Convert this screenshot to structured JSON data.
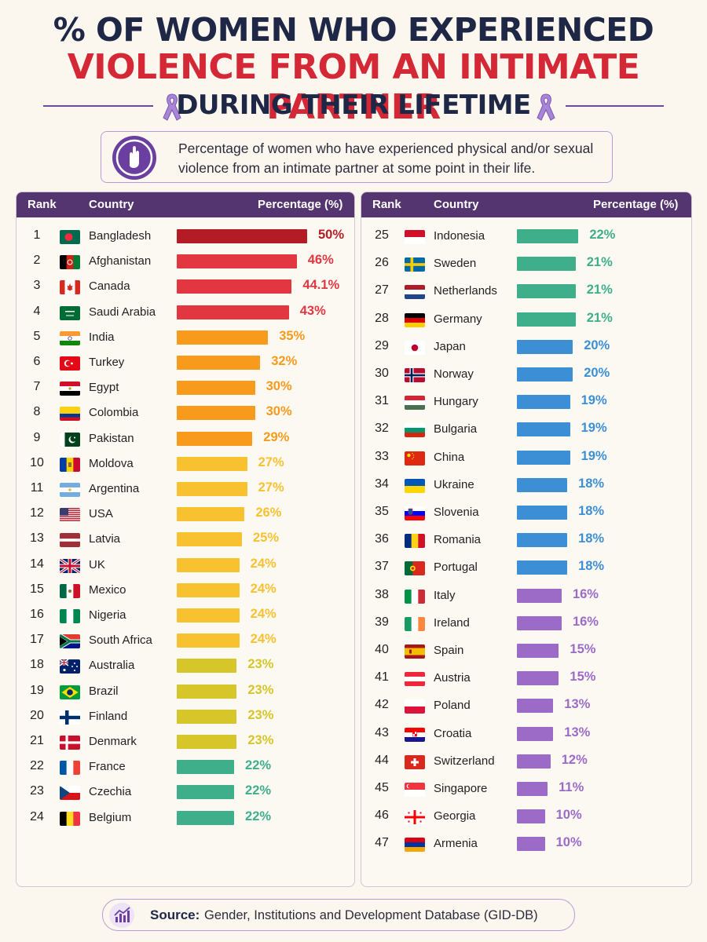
{
  "title": {
    "line1": "% OF WOMEN WHO EXPERIENCED",
    "line2": "VIOLENCE FROM AN INTIMATE PARTNER",
    "line3": "DURING THEIR LIFETIME"
  },
  "description": {
    "line1": "Percentage of women who have experienced physical and/or sexual",
    "line2": "violence from an intimate partner at some point in their life.",
    "icon": "hand-stop-icon"
  },
  "table_headers": {
    "rank": "Rank",
    "country": "Country",
    "percentage": "Percentage (%)"
  },
  "source": {
    "label": "Source:",
    "text": "Gender, Institutions and Development Database (GID-DB)",
    "icon": "bar-chart-icon"
  },
  "colors": {
    "red_dark": "#b31b25",
    "red": "#e23640",
    "orange": "#f89a1c",
    "amber": "#f7c130",
    "olive": "#d6c62a",
    "green": "#3fae8a",
    "blue": "#3d8fd5",
    "purple": "#9b6bc7"
  },
  "chart_data": {
    "type": "bar",
    "title": "% OF WOMEN WHO EXPERIENCED VIOLENCE FROM AN INTIMATE PARTNER DURING THEIR LIFETIME",
    "xlabel": "Country",
    "ylabel": "Percentage (%)",
    "xlim": [
      0,
      50
    ],
    "rows": [
      {
        "rank": "1",
        "country": "Bangladesh",
        "value": 50,
        "label": "50%",
        "color": "#b31b25"
      },
      {
        "rank": "2",
        "country": "Afghanistan",
        "value": 46,
        "label": "46%",
        "color": "#e23640"
      },
      {
        "rank": "3",
        "country": "Canada",
        "value": 44.1,
        "label": "44.1%",
        "color": "#e23640"
      },
      {
        "rank": "4",
        "country": "Saudi Arabia",
        "value": 43,
        "label": "43%",
        "color": "#e23640"
      },
      {
        "rank": "5",
        "country": "India",
        "value": 35,
        "label": "35%",
        "color": "#f89a1c"
      },
      {
        "rank": "6",
        "country": "Turkey",
        "value": 32,
        "label": "32%",
        "color": "#f89a1c"
      },
      {
        "rank": "7",
        "country": "Egypt",
        "value": 30,
        "label": "30%",
        "color": "#f89a1c"
      },
      {
        "rank": "8",
        "country": "Colombia",
        "value": 30,
        "label": "30%",
        "color": "#f89a1c"
      },
      {
        "rank": "9",
        "country": "Pakistan",
        "value": 29,
        "label": "29%",
        "color": "#f89a1c"
      },
      {
        "rank": "10",
        "country": "Moldova",
        "value": 27,
        "label": "27%",
        "color": "#f7c130"
      },
      {
        "rank": "11",
        "country": "Argentina",
        "value": 27,
        "label": "27%",
        "color": "#f7c130"
      },
      {
        "rank": "12",
        "country": "USA",
        "value": 26,
        "label": "26%",
        "color": "#f7c130"
      },
      {
        "rank": "13",
        "country": "Latvia",
        "value": 25,
        "label": "25%",
        "color": "#f7c130"
      },
      {
        "rank": "14",
        "country": "UK",
        "value": 24,
        "label": "24%",
        "color": "#f7c130"
      },
      {
        "rank": "15",
        "country": "Mexico",
        "value": 24,
        "label": "24%",
        "color": "#f7c130"
      },
      {
        "rank": "16",
        "country": "Nigeria",
        "value": 24,
        "label": "24%",
        "color": "#f7c130"
      },
      {
        "rank": "17",
        "country": "South Africa",
        "value": 24,
        "label": "24%",
        "color": "#f7c130"
      },
      {
        "rank": "18",
        "country": "Australia",
        "value": 23,
        "label": "23%",
        "color": "#d6c62a"
      },
      {
        "rank": "19",
        "country": "Brazil",
        "value": 23,
        "label": "23%",
        "color": "#d6c62a"
      },
      {
        "rank": "20",
        "country": "Finland",
        "value": 23,
        "label": "23%",
        "color": "#d6c62a"
      },
      {
        "rank": "21",
        "country": "Denmark",
        "value": 23,
        "label": "23%",
        "color": "#d6c62a"
      },
      {
        "rank": "22",
        "country": "France",
        "value": 22,
        "label": "22%",
        "color": "#3fae8a"
      },
      {
        "rank": "23",
        "country": "Czechia",
        "value": 22,
        "label": "22%",
        "color": "#3fae8a"
      },
      {
        "rank": "24",
        "country": "Belgium",
        "value": 22,
        "label": "22%",
        "color": "#3fae8a"
      },
      {
        "rank": "25",
        "country": "Indonesia",
        "value": 22,
        "label": "22%",
        "color": "#3fae8a"
      },
      {
        "rank": "26",
        "country": "Sweden",
        "value": 21,
        "label": "21%",
        "color": "#3fae8a"
      },
      {
        "rank": "27",
        "country": "Netherlands",
        "value": 21,
        "label": "21%",
        "color": "#3fae8a"
      },
      {
        "rank": "28",
        "country": "Germany",
        "value": 21,
        "label": "21%",
        "color": "#3fae8a"
      },
      {
        "rank": "29",
        "country": "Japan",
        "value": 20,
        "label": "20%",
        "color": "#3d8fd5"
      },
      {
        "rank": "30",
        "country": "Norway",
        "value": 20,
        "label": "20%",
        "color": "#3d8fd5"
      },
      {
        "rank": "31",
        "country": "Hungary",
        "value": 19,
        "label": "19%",
        "color": "#3d8fd5"
      },
      {
        "rank": "32",
        "country": "Bulgaria",
        "value": 19,
        "label": "19%",
        "color": "#3d8fd5"
      },
      {
        "rank": "33",
        "country": "China",
        "value": 19,
        "label": "19%",
        "color": "#3d8fd5"
      },
      {
        "rank": "34",
        "country": "Ukraine",
        "value": 18,
        "label": "18%",
        "color": "#3d8fd5"
      },
      {
        "rank": "35",
        "country": "Slovenia",
        "value": 18,
        "label": "18%",
        "color": "#3d8fd5"
      },
      {
        "rank": "36",
        "country": "Romania",
        "value": 18,
        "label": "18%",
        "color": "#3d8fd5"
      },
      {
        "rank": "37",
        "country": "Portugal",
        "value": 18,
        "label": "18%",
        "color": "#3d8fd5"
      },
      {
        "rank": "38",
        "country": "Italy",
        "value": 16,
        "label": "16%",
        "color": "#9b6bc7"
      },
      {
        "rank": "39",
        "country": "Ireland",
        "value": 16,
        "label": "16%",
        "color": "#9b6bc7"
      },
      {
        "rank": "40",
        "country": "Spain",
        "value": 15,
        "label": "15%",
        "color": "#9b6bc7"
      },
      {
        "rank": "41",
        "country": "Austria",
        "value": 15,
        "label": "15%",
        "color": "#9b6bc7"
      },
      {
        "rank": "42",
        "country": "Poland",
        "value": 13,
        "label": "13%",
        "color": "#9b6bc7"
      },
      {
        "rank": "43",
        "country": "Croatia",
        "value": 13,
        "label": "13%",
        "color": "#9b6bc7"
      },
      {
        "rank": "44",
        "country": "Switzerland",
        "value": 12,
        "label": "12%",
        "color": "#9b6bc7"
      },
      {
        "rank": "45",
        "country": "Singapore",
        "value": 11,
        "label": "11%",
        "color": "#9b6bc7"
      },
      {
        "rank": "46",
        "country": "Georgia",
        "value": 10,
        "label": "10%",
        "color": "#9b6bc7"
      },
      {
        "rank": "47",
        "country": "Armenia",
        "value": 10,
        "label": "10%",
        "color": "#9b6bc7"
      }
    ]
  }
}
